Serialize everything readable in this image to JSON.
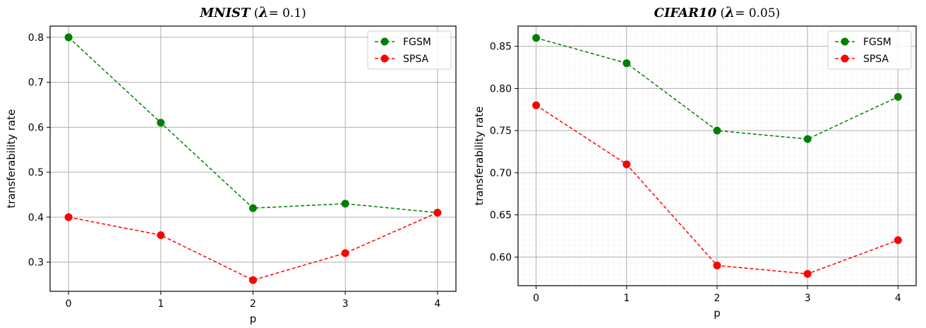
{
  "chart_data": [
    {
      "type": "line",
      "title": {
        "name": "MNIST",
        "open": " (",
        "lambda": "λ",
        "rest": "= 0.1)"
      },
      "xlabel": "p",
      "ylabel": "transferability rate",
      "x": [
        0,
        1,
        2,
        3,
        4
      ],
      "xticks": [
        "0",
        "1",
        "2",
        "3",
        "4"
      ],
      "xlim": [
        -0.2,
        4.2
      ],
      "yticks": [
        "0.3",
        "0.4",
        "0.5",
        "0.6",
        "0.7",
        "0.8"
      ],
      "ylim": [
        0.235,
        0.825
      ],
      "grid": true,
      "legend_position": "top-right",
      "series": [
        {
          "name": "FGSM",
          "color": "#008000",
          "values": [
            0.8,
            0.61,
            0.42,
            0.43,
            0.41
          ]
        },
        {
          "name": "SPSA",
          "color": "#ff0000",
          "values": [
            0.4,
            0.36,
            0.26,
            0.32,
            0.41
          ]
        }
      ]
    },
    {
      "type": "line",
      "title": {
        "name": "CIFAR10",
        "open": " (",
        "lambda": "λ",
        "rest": "= 0.05)"
      },
      "xlabel": "p",
      "ylabel": "transferability rate",
      "x": [
        0,
        1,
        2,
        3,
        4
      ],
      "xticks": [
        "0",
        "1",
        "2",
        "3",
        "4"
      ],
      "xlim": [
        -0.2,
        4.2
      ],
      "yticks": [
        "0.60",
        "0.65",
        "0.70",
        "0.75",
        "0.80",
        "0.85"
      ],
      "ylim": [
        0.566,
        0.874
      ],
      "grid": true,
      "legend_position": "top-right",
      "series": [
        {
          "name": "FGSM",
          "color": "#008000",
          "values": [
            0.86,
            0.83,
            0.75,
            0.74,
            0.79
          ]
        },
        {
          "name": "SPSA",
          "color": "#ff0000",
          "values": [
            0.78,
            0.71,
            0.59,
            0.58,
            0.62
          ]
        }
      ]
    }
  ]
}
